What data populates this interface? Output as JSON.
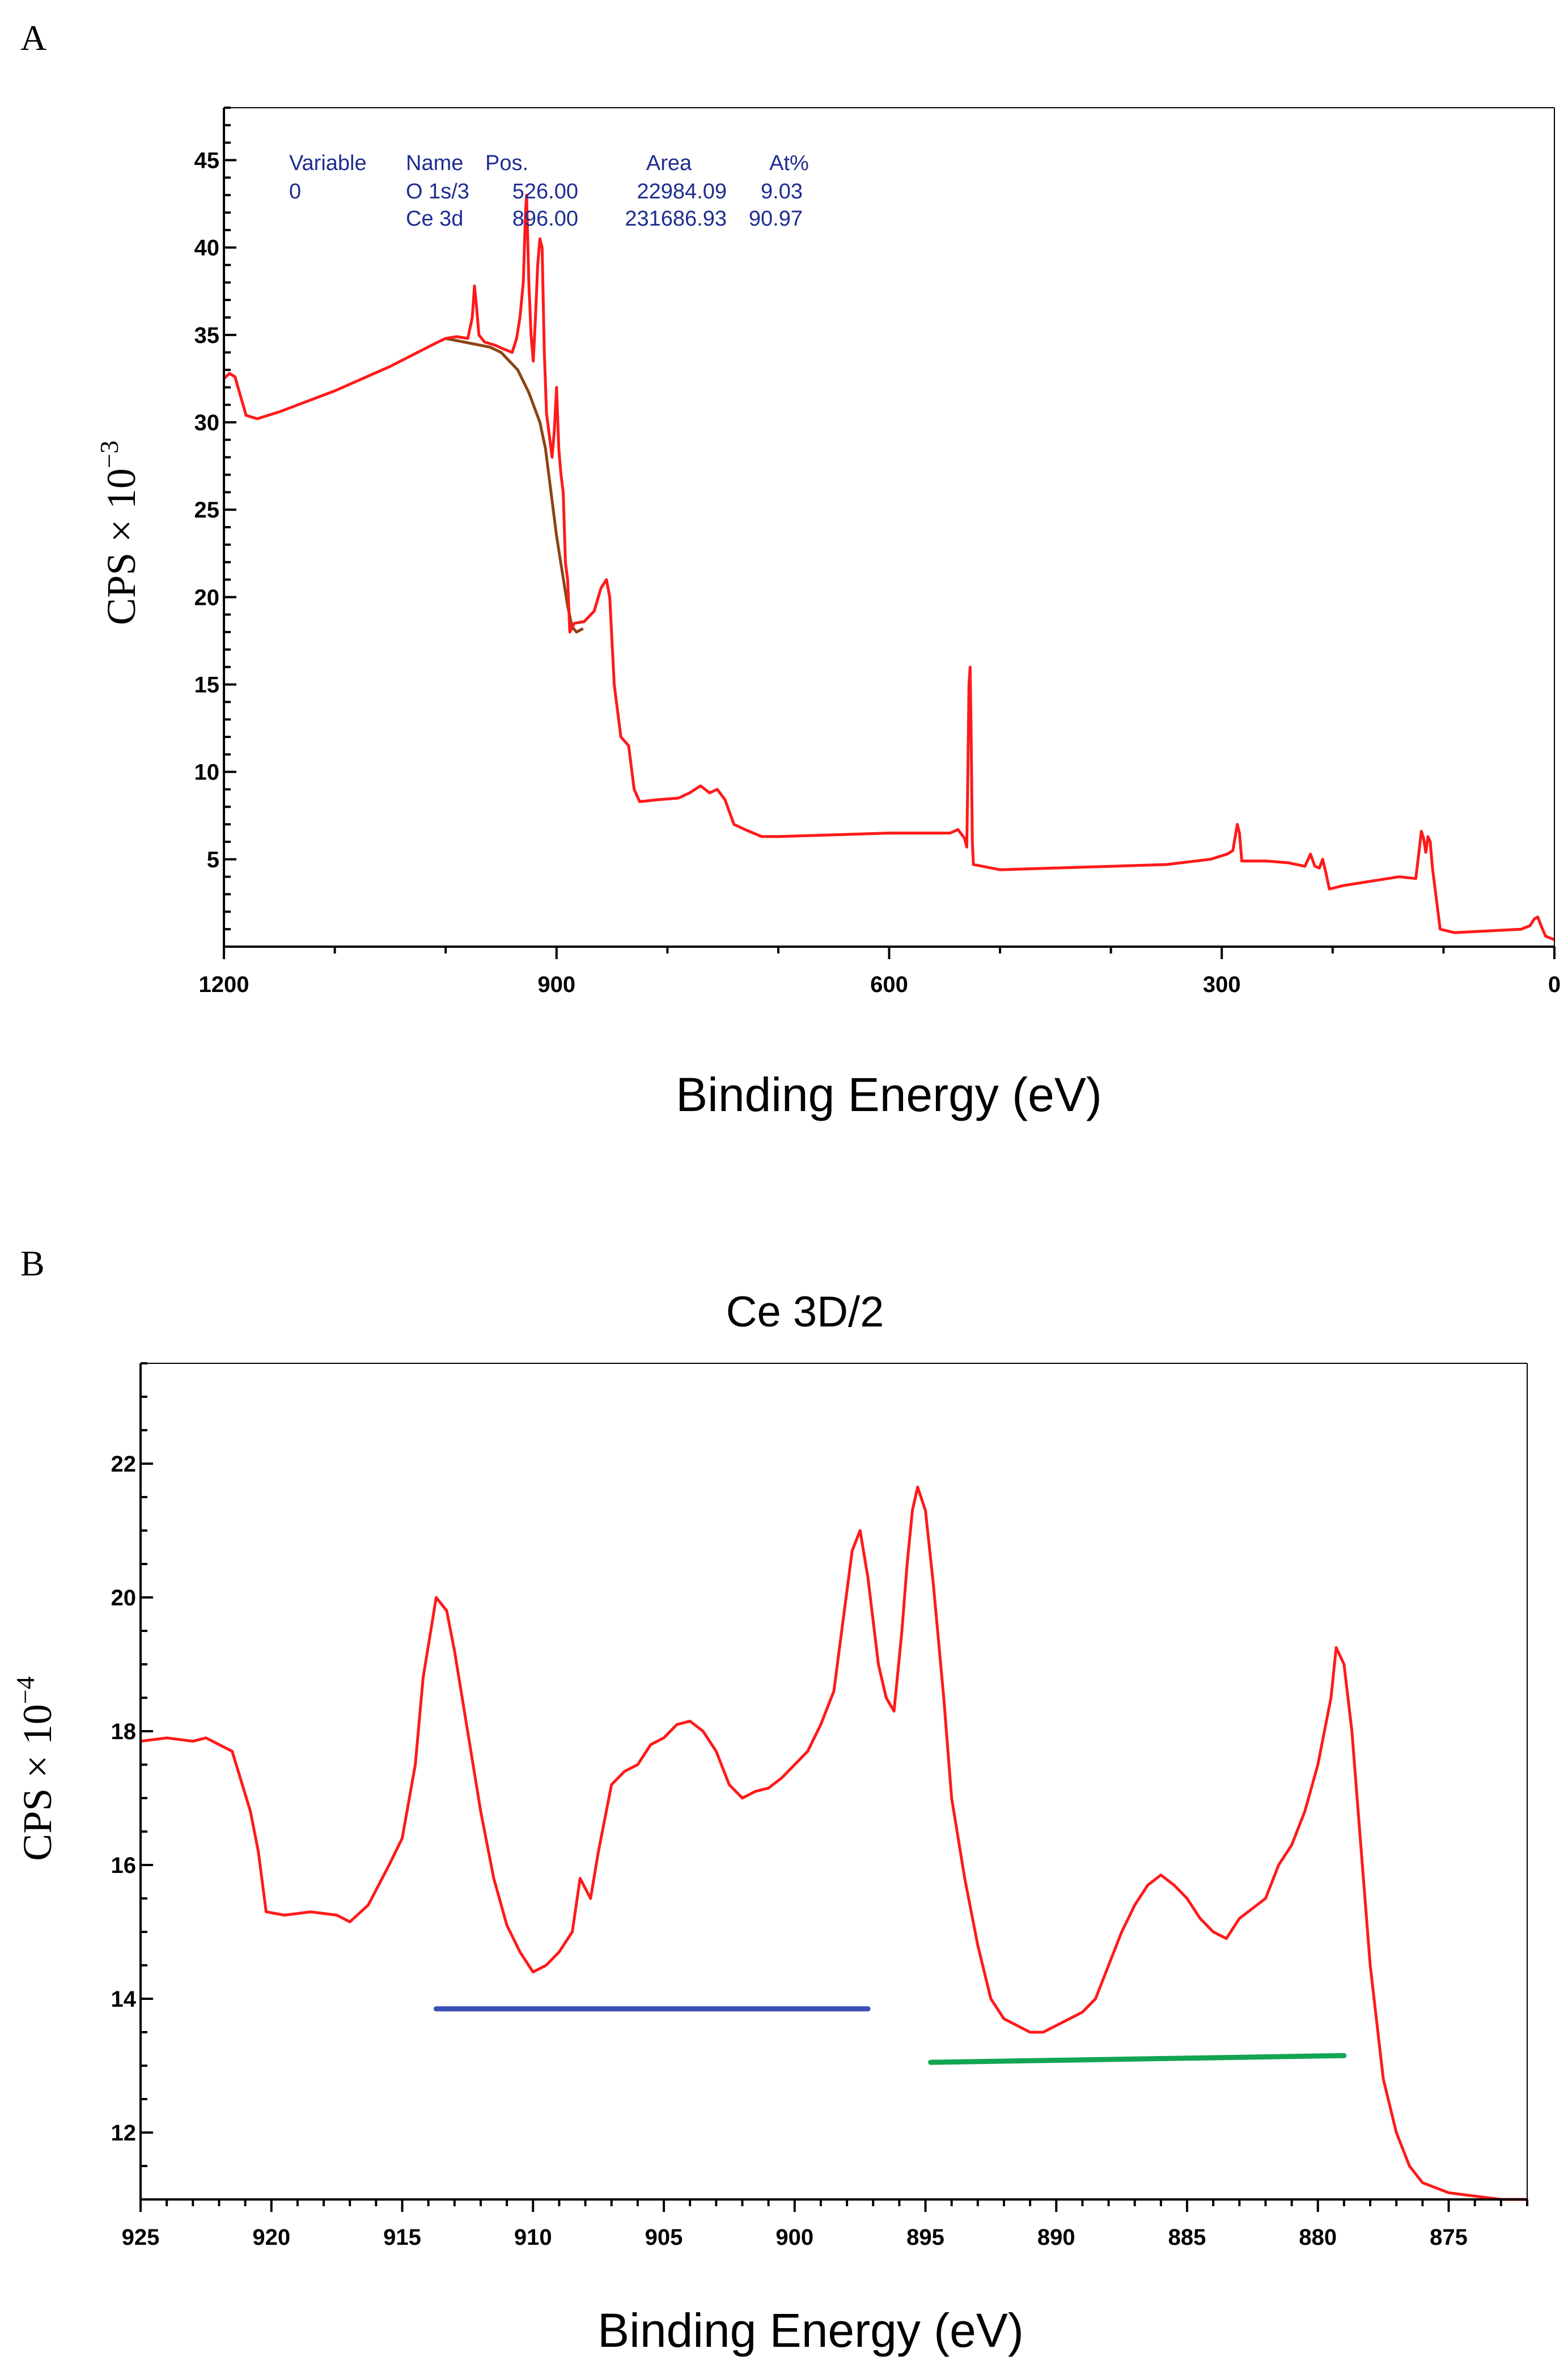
{
  "colors": {
    "spectrum": "#ff1a1a",
    "background_line": "#8b4513",
    "blue_bar": "#3a4fb5",
    "green_bar": "#12a552",
    "table_text": "#1f2d8f"
  },
  "chart_data": [
    {
      "type": "line",
      "panel": "A",
      "title": "",
      "xlabel": "Binding Energy (eV)",
      "ylabel": "CPS × 10",
      "ylabel_exp": "−3",
      "xlim": [
        1200,
        0
      ],
      "ylim": [
        0,
        48
      ],
      "x_ticks": [
        1200,
        900,
        600,
        300,
        0
      ],
      "y_ticks": [
        5,
        10,
        15,
        20,
        25,
        30,
        35,
        40,
        45
      ],
      "peak_table": {
        "headers": [
          "Variable",
          "Name",
          "Pos.",
          "Area",
          "At%"
        ],
        "rows": [
          [
            "0",
            "O 1s/3",
            "526.00",
            "22984.09",
            "9.03"
          ],
          [
            "",
            "Ce 3d",
            "896.00",
            "231686.93",
            "90.97"
          ]
        ]
      },
      "series": [
        {
          "name": "survey spectrum",
          "points": [
            [
              1200,
              32.5
            ],
            [
              1195,
              32.8
            ],
            [
              1190,
              32.6
            ],
            [
              1185,
              31.5
            ],
            [
              1180,
              30.4
            ],
            [
              1170,
              30.2
            ],
            [
              1150,
              30.6
            ],
            [
              1100,
              31.8
            ],
            [
              1050,
              33.2
            ],
            [
              1010,
              34.5
            ],
            [
              1000,
              34.8
            ],
            [
              990,
              34.9
            ],
            [
              980,
              34.8
            ],
            [
              976,
              36.0
            ],
            [
              974,
              37.8
            ],
            [
              972,
              36.5
            ],
            [
              970,
              35.0
            ],
            [
              965,
              34.6
            ],
            [
              955,
              34.4
            ],
            [
              948,
              34.2
            ],
            [
              940,
              34.0
            ],
            [
              936,
              34.8
            ],
            [
              933,
              36.0
            ],
            [
              930,
              38.0
            ],
            [
              928,
              42.0
            ],
            [
              927,
              43.0
            ],
            [
              925,
              38.0
            ],
            [
              923,
              35.0
            ],
            [
              921,
              33.5
            ],
            [
              919,
              36.0
            ],
            [
              917,
              39.0
            ],
            [
              915,
              40.5
            ],
            [
              913,
              40.0
            ],
            [
              911,
              34.0
            ],
            [
              909,
              30.5
            ],
            [
              906,
              29.0
            ],
            [
              904,
              28.0
            ],
            [
              902,
              29.5
            ],
            [
              900,
              32.0
            ],
            [
              898,
              28.5
            ],
            [
              896,
              27.0
            ],
            [
              894,
              26.0
            ],
            [
              892,
              22.0
            ],
            [
              890,
              21.0
            ],
            [
              888,
              18.0
            ],
            [
              884,
              18.5
            ],
            [
              875,
              18.6
            ],
            [
              866,
              19.2
            ],
            [
              860,
              20.5
            ],
            [
              855,
              21.0
            ],
            [
              852,
              20.0
            ],
            [
              848,
              15.0
            ],
            [
              842,
              12.0
            ],
            [
              835,
              11.5
            ],
            [
              830,
              9.0
            ],
            [
              825,
              8.3
            ],
            [
              810,
              8.4
            ],
            [
              790,
              8.5
            ],
            [
              780,
              8.8
            ],
            [
              770,
              9.2
            ],
            [
              762,
              8.8
            ],
            [
              755,
              9.0
            ],
            [
              748,
              8.4
            ],
            [
              740,
              7.0
            ],
            [
              730,
              6.7
            ],
            [
              715,
              6.3
            ],
            [
              700,
              6.3
            ],
            [
              650,
              6.4
            ],
            [
              600,
              6.5
            ],
            [
              560,
              6.5
            ],
            [
              545,
              6.5
            ],
            [
              538,
              6.7
            ],
            [
              532,
              6.2
            ],
            [
              530,
              5.7
            ],
            [
              529,
              10.0
            ],
            [
              528,
              15.0
            ],
            [
              527,
              16.0
            ],
            [
              526,
              12.0
            ],
            [
              525,
              6.0
            ],
            [
              524,
              4.7
            ],
            [
              500,
              4.4
            ],
            [
              450,
              4.5
            ],
            [
              400,
              4.6
            ],
            [
              350,
              4.7
            ],
            [
              310,
              5.0
            ],
            [
              295,
              5.3
            ],
            [
              290,
              5.5
            ],
            [
              286,
              7.0
            ],
            [
              284,
              6.5
            ],
            [
              282,
              4.9
            ],
            [
              260,
              4.9
            ],
            [
              240,
              4.8
            ],
            [
              225,
              4.6
            ],
            [
              220,
              5.3
            ],
            [
              216,
              4.6
            ],
            [
              212,
              4.5
            ],
            [
              209,
              5.0
            ],
            [
              206,
              4.2
            ],
            [
              203,
              3.3
            ],
            [
              190,
              3.5
            ],
            [
              160,
              3.8
            ],
            [
              140,
              4.0
            ],
            [
              125,
              3.9
            ],
            [
              122,
              5.5
            ],
            [
              120,
              6.6
            ],
            [
              118,
              6.2
            ],
            [
              116,
              5.4
            ],
            [
              114,
              6.3
            ],
            [
              112,
              6.0
            ],
            [
              110,
              4.5
            ],
            [
              106,
              2.5
            ],
            [
              103,
              1.0
            ],
            [
              90,
              0.8
            ],
            [
              60,
              0.9
            ],
            [
              30,
              1.0
            ],
            [
              22,
              1.2
            ],
            [
              18,
              1.6
            ],
            [
              15,
              1.7
            ],
            [
              12,
              1.2
            ],
            [
              8,
              0.6
            ],
            [
              0,
              0.4
            ]
          ]
        },
        {
          "name": "background",
          "points": [
            [
              1000,
              34.8
            ],
            [
              960,
              34.3
            ],
            [
              950,
              34.0
            ],
            [
              935,
              33.0
            ],
            [
              925,
              31.7
            ],
            [
              915,
              30.0
            ],
            [
              910,
              28.5
            ],
            [
              905,
              26.0
            ],
            [
              900,
              23.5
            ],
            [
              895,
              21.5
            ],
            [
              890,
              19.5
            ],
            [
              886,
              18.3
            ],
            [
              882,
              18.0
            ],
            [
              876,
              18.2
            ]
          ]
        }
      ]
    },
    {
      "type": "line",
      "panel": "B",
      "title": "Ce 3D/2",
      "xlabel": "Binding Energy (eV)",
      "ylabel": "CPS × 10",
      "ylabel_exp": "−4",
      "xlim": [
        925,
        872
      ],
      "ylim": [
        11,
        23.5
      ],
      "x_ticks": [
        925,
        920,
        915,
        910,
        905,
        900,
        895,
        890,
        885,
        880,
        875
      ],
      "y_ticks": [
        12,
        14,
        16,
        18,
        20,
        22
      ],
      "series": [
        {
          "name": "Ce 3d spectrum",
          "points": [
            [
              925,
              17.85
            ],
            [
              924,
              17.9
            ],
            [
              923,
              17.85
            ],
            [
              922.5,
              17.9
            ],
            [
              921.5,
              17.7
            ],
            [
              920.8,
              16.8
            ],
            [
              920.5,
              16.2
            ],
            [
              920.2,
              15.3
            ],
            [
              919.5,
              15.25
            ],
            [
              918.5,
              15.3
            ],
            [
              917.5,
              15.25
            ],
            [
              917,
              15.15
            ],
            [
              916.3,
              15.4
            ],
            [
              915.5,
              16.0
            ],
            [
              915,
              16.4
            ],
            [
              914.5,
              17.5
            ],
            [
              914.2,
              18.8
            ],
            [
              913.7,
              20.0
            ],
            [
              913.3,
              19.8
            ],
            [
              913,
              19.2
            ],
            [
              912.5,
              18.0
            ],
            [
              912,
              16.8
            ],
            [
              911.5,
              15.8
            ],
            [
              911,
              15.1
            ],
            [
              910.5,
              14.7
            ],
            [
              910,
              14.4
            ],
            [
              909.5,
              14.5
            ],
            [
              909,
              14.7
            ],
            [
              908.5,
              15.0
            ],
            [
              908.2,
              15.8
            ],
            [
              907.8,
              15.5
            ],
            [
              907.5,
              16.2
            ],
            [
              907,
              17.2
            ],
            [
              906.5,
              17.4
            ],
            [
              906,
              17.5
            ],
            [
              905.5,
              17.8
            ],
            [
              905,
              17.9
            ],
            [
              904.5,
              18.1
            ],
            [
              904,
              18.15
            ],
            [
              903.5,
              18.0
            ],
            [
              903,
              17.7
            ],
            [
              902.5,
              17.2
            ],
            [
              902,
              17.0
            ],
            [
              901.5,
              17.1
            ],
            [
              901,
              17.15
            ],
            [
              900.5,
              17.3
            ],
            [
              900,
              17.5
            ],
            [
              899.5,
              17.7
            ],
            [
              899,
              18.1
            ],
            [
              898.5,
              18.6
            ],
            [
              898.2,
              19.5
            ],
            [
              897.8,
              20.7
            ],
            [
              897.5,
              21.0
            ],
            [
              897.2,
              20.3
            ],
            [
              896.8,
              19.0
            ],
            [
              896.5,
              18.5
            ],
            [
              896.2,
              18.3
            ],
            [
              895.9,
              19.5
            ],
            [
              895.7,
              20.5
            ],
            [
              895.5,
              21.3
            ],
            [
              895.3,
              21.65
            ],
            [
              895,
              21.3
            ],
            [
              894.7,
              20.2
            ],
            [
              894.3,
              18.5
            ],
            [
              894,
              17.0
            ],
            [
              893.5,
              15.8
            ],
            [
              893,
              14.8
            ],
            [
              892.5,
              14.0
            ],
            [
              892,
              13.7
            ],
            [
              891.5,
              13.6
            ],
            [
              891,
              13.5
            ],
            [
              890.5,
              13.5
            ],
            [
              890,
              13.6
            ],
            [
              889.5,
              13.7
            ],
            [
              889,
              13.8
            ],
            [
              888.5,
              14.0
            ],
            [
              888,
              14.5
            ],
            [
              887.5,
              15.0
            ],
            [
              887,
              15.4
            ],
            [
              886.5,
              15.7
            ],
            [
              886,
              15.85
            ],
            [
              885.5,
              15.7
            ],
            [
              885,
              15.5
            ],
            [
              884.5,
              15.2
            ],
            [
              884,
              15.0
            ],
            [
              883.5,
              14.9
            ],
            [
              883,
              15.2
            ],
            [
              882.5,
              15.35
            ],
            [
              882,
              15.5
            ],
            [
              881.5,
              16.0
            ],
            [
              881,
              16.3
            ],
            [
              880.5,
              16.8
            ],
            [
              880,
              17.5
            ],
            [
              879.5,
              18.5
            ],
            [
              879.3,
              19.25
            ],
            [
              879,
              19.0
            ],
            [
              878.7,
              18.0
            ],
            [
              878.4,
              16.5
            ],
            [
              878,
              14.5
            ],
            [
              877.5,
              12.8
            ],
            [
              877,
              12.0
            ],
            [
              876.5,
              11.5
            ],
            [
              876,
              11.25
            ],
            [
              875,
              11.1
            ],
            [
              874,
              11.05
            ],
            [
              873,
              11.0
            ],
            [
              872,
              11.0
            ]
          ]
        }
      ],
      "reference_lines": [
        {
          "name": "blue bar",
          "x": [
            913.7,
            897.2
          ],
          "y": [
            13.85,
            13.85
          ]
        },
        {
          "name": "green bar",
          "x": [
            894.8,
            879.0
          ],
          "y": [
            13.05,
            13.15
          ]
        }
      ]
    }
  ],
  "panels": {
    "a": {
      "letter": "A"
    },
    "b": {
      "letter": "B"
    }
  }
}
